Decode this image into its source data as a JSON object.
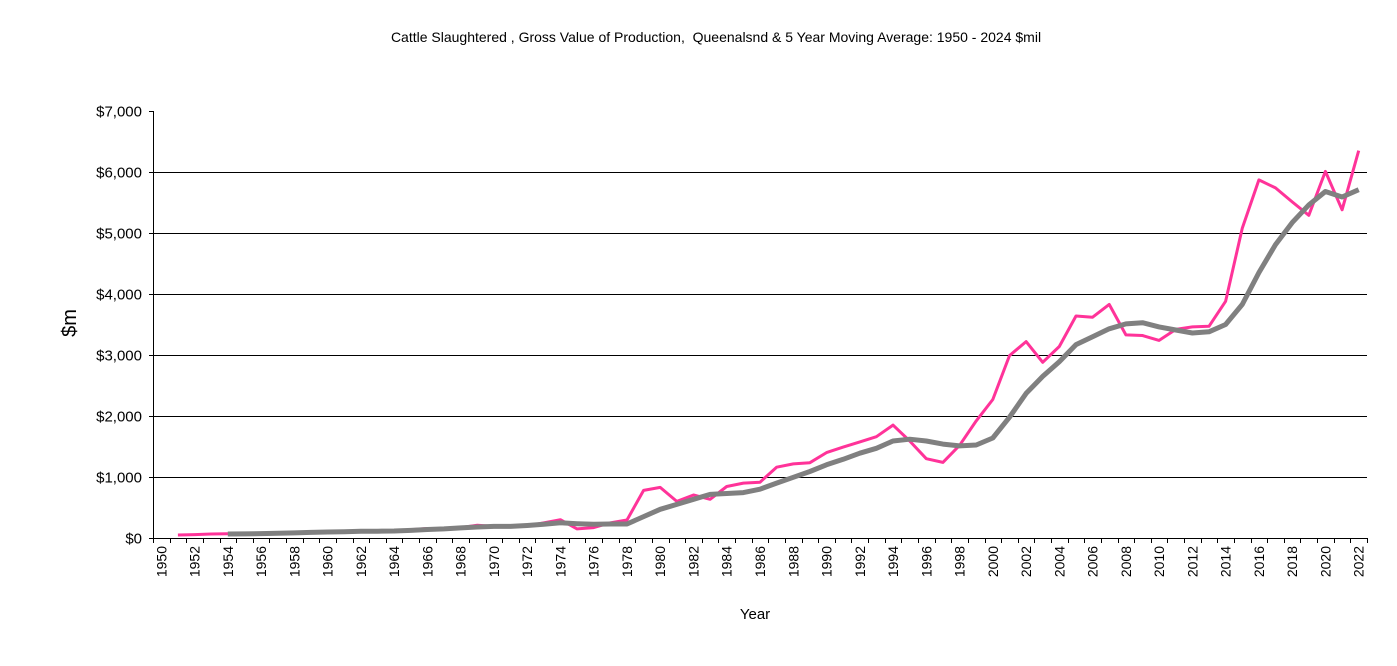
{
  "chart_data": {
    "type": "line",
    "title": "Cattle Slaughtered , Gross Value of Production,  Queenalsnd & 5 Year Moving Average: 1950 - 2024 $mil",
    "xlabel": "Year",
    "ylabel": "$m",
    "ylim": [
      0,
      7000
    ],
    "y_ticks": [
      0,
      1000,
      2000,
      3000,
      4000,
      5000,
      6000,
      7000
    ],
    "y_tick_labels": [
      "$0",
      "$1,000",
      "$2,000",
      "$3,000",
      "$4,000",
      "$5,000",
      "$6,000",
      "$7,000"
    ],
    "grid": "horizontal",
    "legend": "none",
    "x": [
      1950,
      1951,
      1952,
      1953,
      1954,
      1955,
      1956,
      1957,
      1958,
      1959,
      1960,
      1961,
      1962,
      1963,
      1964,
      1965,
      1966,
      1967,
      1968,
      1969,
      1970,
      1971,
      1972,
      1973,
      1974,
      1975,
      1976,
      1977,
      1978,
      1979,
      1980,
      1981,
      1982,
      1983,
      1984,
      1985,
      1986,
      1987,
      1988,
      1989,
      1990,
      1991,
      1992,
      1993,
      1994,
      1995,
      1996,
      1997,
      1998,
      1999,
      2000,
      2001,
      2002,
      2003,
      2004,
      2005,
      2006,
      2007,
      2008,
      2009,
      2010,
      2011,
      2012,
      2013,
      2014,
      2015,
      2016,
      2017,
      2018,
      2019,
      2020,
      2021,
      2022
    ],
    "x_tick_labels": [
      "1950",
      "1952",
      "1954",
      "1956",
      "1958",
      "1960",
      "1962",
      "1964",
      "1966",
      "1968",
      "1970",
      "1972",
      "1974",
      "1976",
      "1978",
      "1980",
      "1982",
      "1984",
      "1986",
      "1988",
      "1990",
      "1992",
      "1994",
      "1996",
      "1998",
      "2000",
      "2002",
      "2004",
      "2006",
      "2008",
      "2010",
      "2012",
      "2014",
      "2016",
      "2018",
      "2020",
      "2022"
    ],
    "series": [
      {
        "name": "Gross Value of Production",
        "color": "#ff3399",
        "values": [
          null,
          50,
          55,
          65,
          70,
          70,
          75,
          85,
          90,
          100,
          105,
          105,
          115,
          115,
          115,
          135,
          155,
          155,
          170,
          210,
          190,
          180,
          200,
          250,
          300,
          150,
          170,
          250,
          295,
          780,
          830,
          600,
          705,
          635,
          845,
          900,
          915,
          1160,
          1215,
          1235,
          1400,
          1490,
          1575,
          1660,
          1850,
          1590,
          1300,
          1240,
          1520,
          1920,
          2270,
          2990,
          3220,
          2880,
          3140,
          3640,
          3620,
          3830,
          3330,
          3320,
          3240,
          3420,
          3460,
          3470,
          3880,
          5080,
          5870,
          5740,
          5510,
          5290,
          6010,
          5380,
          6350
        ]
      },
      {
        "name": "5 Year Moving Average",
        "color": "#808080",
        "values": [
          null,
          null,
          null,
          null,
          65,
          68,
          72,
          78,
          84,
          92,
          98,
          104,
          110,
          112,
          115,
          125,
          140,
          150,
          165,
          180,
          190,
          190,
          205,
          225,
          250,
          235,
          225,
          230,
          230,
          350,
          470,
          550,
          635,
          715,
          730,
          745,
          800,
          900,
          995,
          1090,
          1200,
          1290,
          1390,
          1470,
          1590,
          1620,
          1590,
          1540,
          1510,
          1525,
          1640,
          1980,
          2370,
          2650,
          2890,
          3170,
          3300,
          3430,
          3510,
          3530,
          3460,
          3410,
          3360,
          3380,
          3500,
          3830,
          4350,
          4810,
          5170,
          5460,
          5680,
          5590,
          5710
        ]
      }
    ]
  }
}
